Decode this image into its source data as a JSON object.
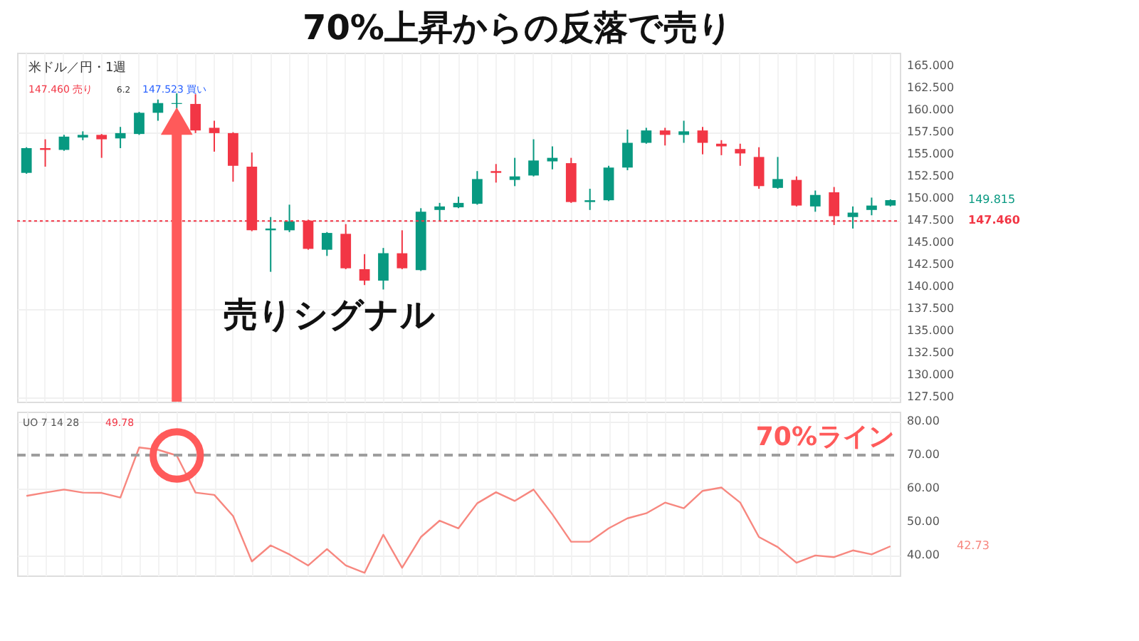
{
  "chart_data": [
    {
      "type": "candlestick",
      "title": "70%上昇からの反落で売り",
      "categories": [
        null,
        null,
        null,
        null,
        null,
        null,
        null,
        null,
        null,
        null,
        null,
        null,
        null,
        null,
        null,
        null,
        null,
        null,
        null,
        null,
        null,
        null,
        null,
        null,
        null,
        null,
        null,
        null,
        null,
        null,
        null,
        null,
        null,
        null,
        null,
        null,
        null,
        null,
        null,
        null,
        null,
        null,
        null,
        null,
        null,
        null,
        null
      ],
      "ohlc": [
        [
          152.9,
          155.8,
          152.8,
          155.7
        ],
        [
          155.7,
          156.7,
          153.6,
          155.5
        ],
        [
          155.5,
          157.2,
          155.4,
          157.0
        ],
        [
          156.9,
          157.6,
          156.6,
          157.2
        ],
        [
          157.2,
          157.3,
          154.6,
          156.7
        ],
        [
          156.8,
          158.1,
          155.7,
          157.4
        ],
        [
          157.3,
          159.8,
          157.2,
          159.7
        ],
        [
          159.7,
          161.2,
          158.8,
          160.8
        ],
        [
          160.7,
          161.9,
          160.2,
          160.8
        ],
        [
          160.7,
          161.8,
          157.4,
          157.7
        ],
        [
          158.0,
          158.8,
          155.3,
          157.4
        ],
        [
          157.4,
          157.5,
          151.9,
          153.7
        ],
        [
          153.6,
          155.2,
          146.3,
          146.4
        ],
        [
          146.4,
          147.9,
          141.7,
          146.6
        ],
        [
          146.4,
          149.3,
          146.2,
          147.4
        ],
        [
          147.5,
          147.6,
          144.2,
          144.3
        ],
        [
          144.2,
          146.2,
          143.5,
          146.1
        ],
        [
          146.0,
          147.1,
          142.0,
          142.1
        ],
        [
          142.0,
          143.7,
          140.2,
          140.7
        ],
        [
          140.7,
          144.4,
          139.7,
          143.8
        ],
        [
          143.8,
          146.4,
          142.0,
          142.1
        ],
        [
          141.9,
          148.9,
          141.8,
          148.5
        ],
        [
          148.7,
          149.5,
          147.4,
          149.1
        ],
        [
          149.0,
          150.2,
          148.9,
          149.5
        ],
        [
          149.4,
          153.1,
          149.3,
          152.2
        ],
        [
          153.1,
          153.9,
          151.8,
          152.9
        ],
        [
          152.1,
          154.6,
          151.4,
          152.5
        ],
        [
          152.6,
          156.7,
          152.5,
          154.3
        ],
        [
          154.2,
          155.9,
          153.3,
          154.6
        ],
        [
          154.0,
          154.6,
          149.5,
          149.6
        ],
        [
          149.6,
          151.1,
          148.7,
          149.8
        ],
        [
          149.8,
          153.7,
          149.7,
          153.5
        ],
        [
          153.5,
          157.8,
          153.2,
          156.3
        ],
        [
          156.3,
          158.0,
          156.2,
          157.7
        ],
        [
          157.7,
          158.0,
          156.0,
          157.2
        ],
        [
          157.2,
          158.8,
          156.3,
          157.6
        ],
        [
          157.7,
          158.1,
          155.0,
          156.3
        ],
        [
          156.2,
          156.6,
          154.9,
          155.9
        ],
        [
          155.6,
          156.2,
          153.7,
          155.1
        ],
        [
          154.7,
          155.8,
          151.1,
          151.4
        ],
        [
          151.2,
          154.7,
          151.1,
          152.2
        ],
        [
          152.1,
          152.5,
          149.1,
          149.2
        ],
        [
          149.1,
          150.9,
          148.5,
          150.4
        ],
        [
          150.7,
          151.3,
          147.0,
          148.0
        ],
        [
          147.9,
          149.1,
          146.6,
          148.4
        ],
        [
          148.7,
          150.1,
          148.1,
          149.2
        ],
        [
          149.2,
          149.9,
          149.1,
          149.815
        ]
      ],
      "colors": [
        "#089981",
        "#f23645",
        "#089981",
        "#089981",
        "#f23645",
        "#089981",
        "#089981",
        "#089981",
        "#089981",
        "#f23645",
        "#f23645",
        "#f23645",
        "#f23645",
        "#089981",
        "#089981",
        "#f23645",
        "#089981",
        "#f23645",
        "#f23645",
        "#089981",
        "#f23645",
        "#089981",
        "#089981",
        "#089981",
        "#089981",
        "#f23645",
        "#089981",
        "#089981",
        "#089981",
        "#f23645",
        "#089981",
        "#089981",
        "#089981",
        "#089981",
        "#f23645",
        "#089981",
        "#f23645",
        "#f23645",
        "#f23645",
        "#f23645",
        "#089981",
        "#f23645",
        "#089981",
        "#f23645",
        "#089981",
        "#089981",
        "#089981"
      ],
      "ylim": [
        127,
        166.5
      ],
      "yticks": [
        {
          "value": 127.5,
          "label": "127.500"
        },
        {
          "value": 130,
          "label": "130.000"
        },
        {
          "value": 132.5,
          "label": "132.500"
        },
        {
          "value": 135,
          "label": "135.000"
        },
        {
          "value": 137.5,
          "label": "137.500"
        },
        {
          "value": 140,
          "label": "140.000"
        },
        {
          "value": 142.5,
          "label": "142.500"
        },
        {
          "value": 145,
          "label": "145.000"
        },
        {
          "value": 147.5,
          "label": "147.500"
        },
        {
          "value": 150,
          "label": "150.000"
        },
        {
          "value": 152.5,
          "label": "152.500"
        },
        {
          "value": 155,
          "label": "155.000"
        },
        {
          "value": 157.5,
          "label": "157.500"
        },
        {
          "value": 160,
          "label": "160.000"
        },
        {
          "value": 162.5,
          "label": "162.500"
        },
        {
          "value": 165,
          "label": "165.000"
        }
      ],
      "ref_lines": [
        {
          "axis": "y",
          "value": 147.46,
          "label": "147.460",
          "color": "#f23645",
          "line_style": "dotted"
        }
      ],
      "annotations": [
        "米ドル／円・1週",
        "147.460 売り",
        "6.2",
        "147.523 買い",
        "売りシグナル",
        "149.815"
      ],
      "grid": true,
      "tick_labels": "y"
    },
    {
      "type": "line",
      "categories": [
        null,
        null,
        null,
        null,
        null,
        null,
        null,
        null,
        null,
        null,
        null,
        null,
        null,
        null,
        null,
        null,
        null,
        null,
        null,
        null,
        null,
        null,
        null,
        null,
        null,
        null,
        null,
        null,
        null,
        null,
        null,
        null,
        null,
        null,
        null,
        null,
        null,
        null,
        null,
        null,
        null,
        null,
        null,
        null,
        null,
        null,
        null
      ],
      "series": [
        {
          "color": "#f7877f",
          "values": [
            57.8,
            58.8,
            59.7,
            58.8,
            58.7,
            57.3,
            72.3,
            71.6,
            69.9,
            58.8,
            58.1,
            51.8,
            38.2,
            43.0,
            40.3,
            37.0,
            41.9,
            37.0,
            34.8,
            46.2,
            36.3,
            45.5,
            50.4,
            48.1,
            55.6,
            58.9,
            56.3,
            59.7,
            52.3,
            44.1,
            44.1,
            48.1,
            51.1,
            52.6,
            55.8,
            54.1,
            59.3,
            60.3,
            55.8,
            45.5,
            42.5,
            37.8,
            40.0,
            39.5,
            41.5,
            40.3,
            42.73
          ]
        }
      ],
      "ylim": [
        34,
        83
      ],
      "yticks": [
        {
          "value": 40,
          "label": "40.00"
        },
        {
          "value": 50,
          "label": "50.00"
        },
        {
          "value": 60,
          "label": "60.00"
        },
        {
          "value": 70,
          "label": "70.00"
        },
        {
          "value": 80,
          "label": "80.00"
        }
      ],
      "ref_lines": [
        {
          "axis": "y",
          "value": 70,
          "label": "70%ライン",
          "color": "#9e9e9e",
          "line_style": "dashed"
        }
      ],
      "annotations": [
        "UO 7 14 28",
        "49.78",
        "42.73"
      ],
      "grid": true,
      "tick_labels": "y"
    }
  ]
}
